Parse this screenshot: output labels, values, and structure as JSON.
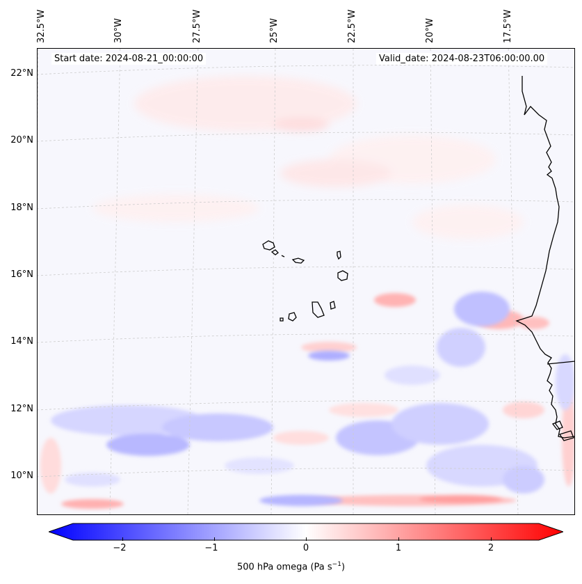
{
  "map": {
    "longitude_labels": [
      "32.5°W",
      "30°W",
      "27.5°W",
      "25°W",
      "22.5°W",
      "20°W",
      "17.5°W"
    ],
    "latitude_labels": [
      "22°N",
      "20°N",
      "18°N",
      "16°N",
      "14°N",
      "12°N",
      "10°N"
    ],
    "start_date": "Start date: 2024-08-21_00:00:00",
    "valid_date": "Valid_date: 2024-08-23T06:00:00.00",
    "field_colors": {
      "negative": "#0000ff",
      "zero": "#ffffff",
      "positive": "#ff0000"
    },
    "coastline_color": "#000000",
    "gridline_color": "#cccccc"
  },
  "colorbar": {
    "ticks": [
      "−2",
      "−1",
      "0",
      "1",
      "2"
    ],
    "label_prefix": "500 hPa omega (Pa s",
    "label_exponent": "−1",
    "label_suffix": ")",
    "range": [
      -2.6,
      2.6
    ]
  }
}
